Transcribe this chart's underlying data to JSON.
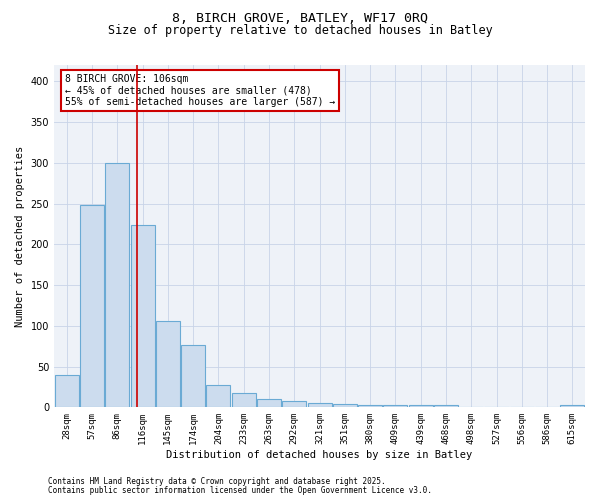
{
  "title_line1": "8, BIRCH GROVE, BATLEY, WF17 0RQ",
  "title_line2": "Size of property relative to detached houses in Batley",
  "xlabel": "Distribution of detached houses by size in Batley",
  "ylabel": "Number of detached properties",
  "categories": [
    "28sqm",
    "57sqm",
    "86sqm",
    "116sqm",
    "145sqm",
    "174sqm",
    "204sqm",
    "233sqm",
    "263sqm",
    "292sqm",
    "321sqm",
    "351sqm",
    "380sqm",
    "409sqm",
    "439sqm",
    "468sqm",
    "498sqm",
    "527sqm",
    "556sqm",
    "586sqm",
    "615sqm"
  ],
  "values": [
    40,
    248,
    300,
    224,
    106,
    76,
    28,
    18,
    10,
    8,
    5,
    4,
    3,
    3,
    3,
    3,
    0,
    0,
    0,
    0,
    3
  ],
  "bar_color": "#ccdcee",
  "bar_edge_color": "#6aaad4",
  "vline_x": 2.78,
  "vline_color": "#cc0000",
  "annotation_text": "8 BIRCH GROVE: 106sqm\n← 45% of detached houses are smaller (478)\n55% of semi-detached houses are larger (587) →",
  "annotation_box_color": "#cc0000",
  "grid_color": "#c8d4e8",
  "background_color": "#eef2f8",
  "footer_line1": "Contains HM Land Registry data © Crown copyright and database right 2025.",
  "footer_line2": "Contains public sector information licensed under the Open Government Licence v3.0.",
  "ylim": [
    0,
    420
  ],
  "title_fontsize": 9.5,
  "subtitle_fontsize": 8.5,
  "tick_fontsize": 6.5,
  "ylabel_fontsize": 7.5,
  "xlabel_fontsize": 7.5,
  "annotation_fontsize": 7.0,
  "footer_fontsize": 5.5
}
